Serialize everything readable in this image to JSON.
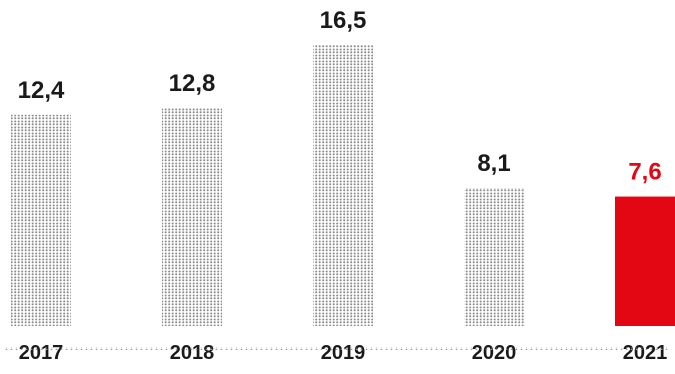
{
  "chart_data": {
    "type": "bar",
    "categories": [
      "2017",
      "2018",
      "2019",
      "2020",
      "2021"
    ],
    "values": [
      12.4,
      12.8,
      16.5,
      8.1,
      7.6
    ],
    "value_labels": [
      "12,4",
      "12,8",
      "16,5",
      "8,1",
      "7,6"
    ],
    "title": "",
    "xlabel": "",
    "ylabel": "",
    "ylim": [
      0,
      16.5
    ],
    "grid": false,
    "styles": {
      "dotted_color": "#8c8c8c",
      "highlight_color": "#e30613",
      "text_color": "#1a1a1a",
      "highlight_index": 4
    }
  }
}
